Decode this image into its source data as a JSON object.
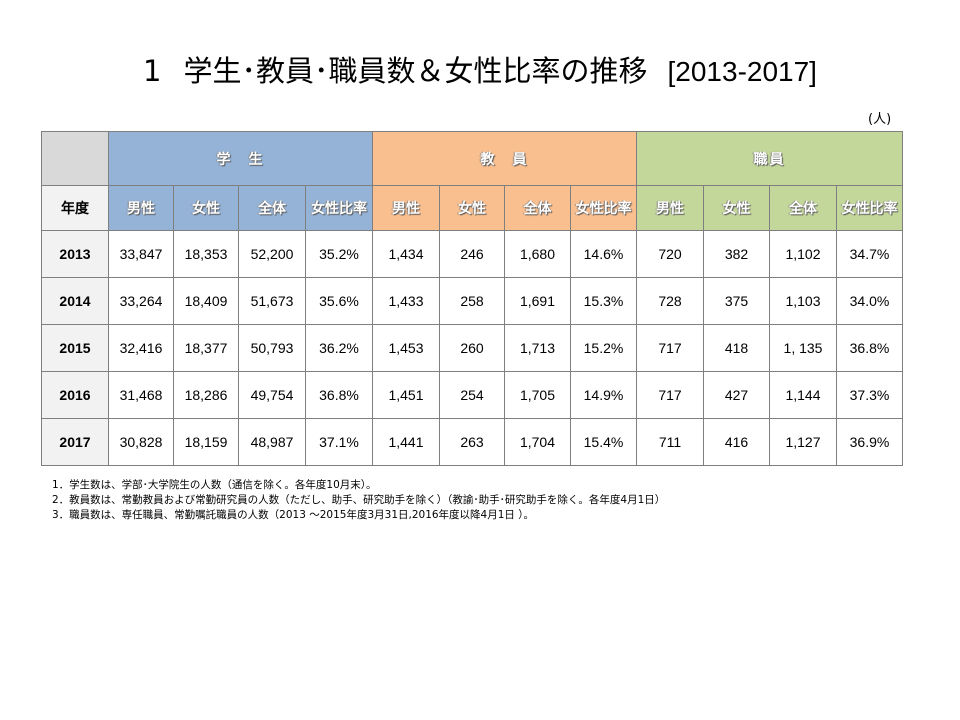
{
  "title": {
    "number": "1",
    "text": "学生･教員･職員数＆女性比率の推移",
    "years": "[2013-2017]"
  },
  "unit": "(人)",
  "table": {
    "groups": [
      "学　生",
      "教　員",
      "職員"
    ],
    "year_header": "年度",
    "sub_headers": [
      "男性",
      "女性",
      "全体",
      "女性比率",
      "男性",
      "女性",
      "全体",
      "女性比率",
      "男性",
      "女性",
      "全体",
      "女性比率"
    ],
    "rows": [
      {
        "year": "2013",
        "cells": [
          "33,847",
          "18,353",
          "52,200",
          "35.2%",
          "1,434",
          "246",
          "1,680",
          "14.6%",
          "720",
          "382",
          "1,102",
          "34.7%"
        ]
      },
      {
        "year": "2014",
        "cells": [
          "33,264",
          "18,409",
          "51,673",
          "35.6%",
          "1,433",
          "258",
          "1,691",
          "15.3%",
          "728",
          "375",
          "1,103",
          "34.0%"
        ]
      },
      {
        "year": "2015",
        "cells": [
          "32,416",
          "18,377",
          "50,793",
          "36.2%",
          "1,453",
          "260",
          "1,713",
          "15.2%",
          "717",
          "418",
          "1, 135",
          "36.8%"
        ]
      },
      {
        "year": "2016",
        "cells": [
          "31,468",
          "18,286",
          "49,754",
          "36.8%",
          "1,451",
          "254",
          "1,705",
          "14.9%",
          "717",
          "427",
          "1,144",
          "37.3%"
        ]
      },
      {
        "year": "2017",
        "cells": [
          "30,828",
          "18,159",
          "48,987",
          "37.1%",
          "1,441",
          "263",
          "1,704",
          "15.4%",
          "711",
          "416",
          "1,127",
          "36.9%"
        ]
      }
    ]
  },
  "notes": [
    "1．学生数は、学部･大学院生の人数（通信を除く。各年度10月末）。",
    "2．教員数は、常勤教員および常勤研究員の人数（ただし、助手、研究助手を除く）（教諭･助手･研究助手を除く。各年度4月1日）",
    "3．職員数は、専任職員、常勤嘱託職員の人数（2013 ～2015年度3月31日,2016年度以降4月1日 ）。"
  ],
  "colors": {
    "student": "#95b3d7",
    "faculty": "#fabf8f",
    "staff": "#c4d79b",
    "corner": "#d9d9d9",
    "year_cells": "#f2f2f2"
  }
}
